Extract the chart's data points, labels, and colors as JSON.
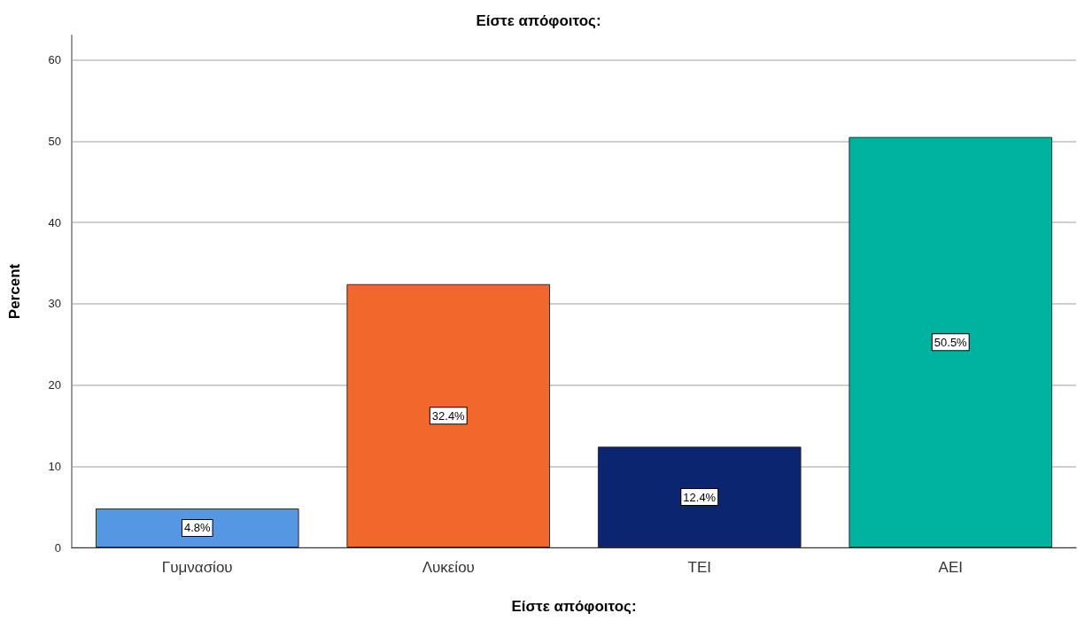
{
  "chart_data": {
    "type": "bar",
    "title": "Είστε απόφοιτος:",
    "xlabel": "Είστε απόφοιτος:",
    "ylabel": "Percent",
    "categories": [
      "Γυμνασίου",
      "Λυκείου",
      "TEI",
      "AEI"
    ],
    "values": [
      4.8,
      32.4,
      12.4,
      50.5
    ],
    "colors": [
      "#5597e3",
      "#f2682c",
      "#0b2570",
      "#00b3a0"
    ],
    "value_labels": [
      "4.8%",
      "32.4%",
      "12.4%",
      "50.5%"
    ],
    "ylim": [
      0,
      63
    ],
    "yticks": [
      0,
      10,
      20,
      30,
      40,
      50,
      60
    ],
    "grid": "y"
  }
}
